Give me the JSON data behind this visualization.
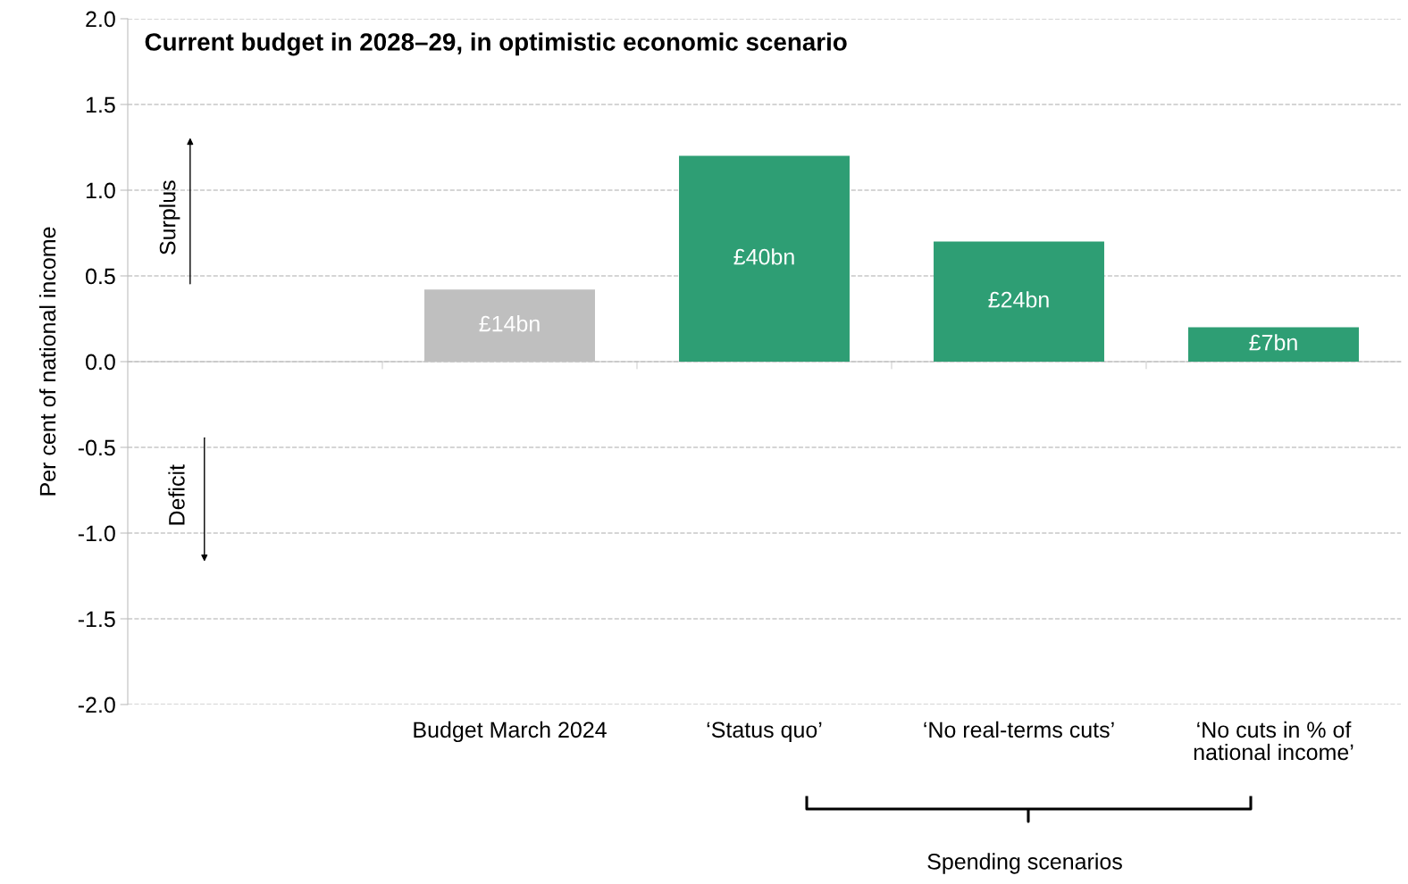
{
  "chart_data": {
    "type": "bar",
    "title": "Current budget in 2028–29, in optimistic economic scenario",
    "ylabel": "Per cent of national income",
    "categories": [
      null,
      "Budget March 2024",
      "‘Status quo’",
      "‘No real-terms cuts’",
      "‘No cuts in % of\nnational income’"
    ],
    "values": [
      null,
      0.42,
      1.2,
      0.7,
      0.2
    ],
    "colors": [
      "#bfbfbf",
      "#bfbfbf",
      "#2e9e74",
      "#2e9e74",
      "#2e9e74"
    ],
    "ylim": [
      -2.0,
      2.0
    ],
    "yticks": [
      {
        "value": -2.0,
        "label": "-2.0"
      },
      {
        "value": -1.5,
        "label": "-1.5"
      },
      {
        "value": -1.0,
        "label": "-1.0"
      },
      {
        "value": -0.5,
        "label": "-0.5"
      },
      {
        "value": 0,
        "label": "0.0"
      },
      {
        "value": 0.5,
        "label": "0.5"
      },
      {
        "value": 1.0,
        "label": "1.0"
      },
      {
        "value": 1.5,
        "label": "1.5"
      },
      {
        "value": 2.0,
        "label": "2.0"
      }
    ],
    "grid": "y",
    "annotations": [
      "Surplus",
      "Deficit",
      "Spending scenarios",
      "£14bn",
      "£40bn",
      "£24bn",
      "£7bn"
    ]
  }
}
